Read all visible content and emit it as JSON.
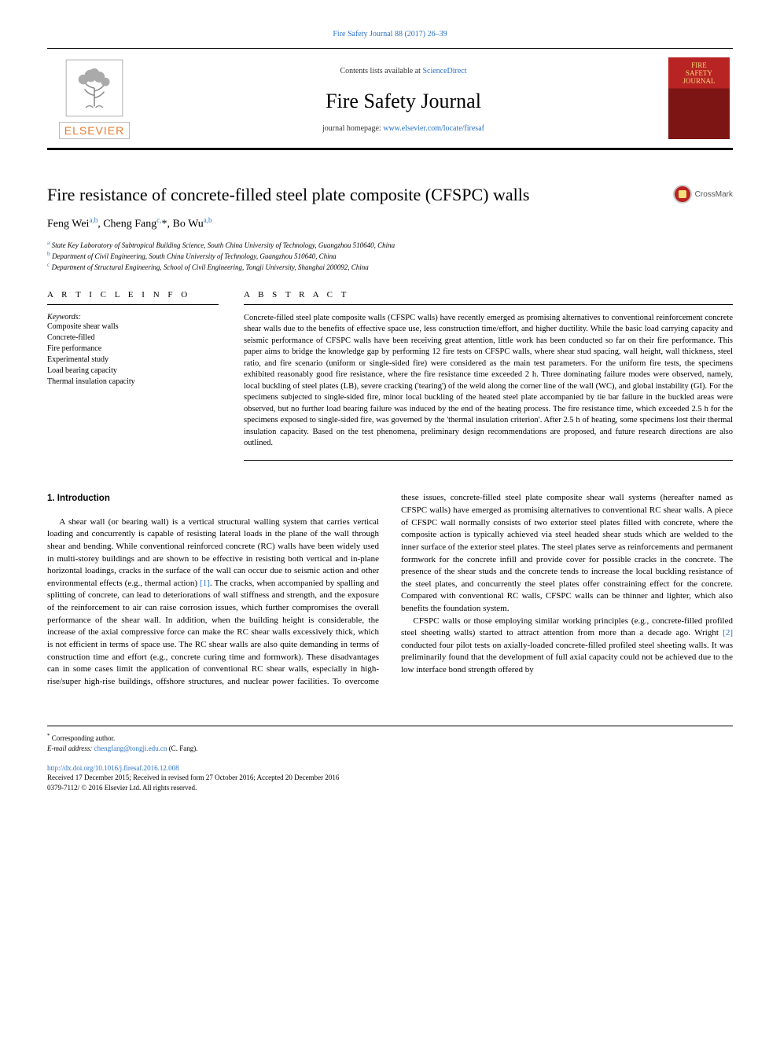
{
  "top_citation_link": "Fire Safety Journal 88 (2017) 26–39",
  "banner": {
    "contents_prefix": "Contents lists available at ",
    "contents_link_text": "ScienceDirect",
    "journal_name": "Fire Safety Journal",
    "homepage_prefix": "journal homepage: ",
    "homepage_link_text": "www.elsevier.com/locate/firesaf",
    "publisher_word": "ELSEVIER",
    "cover_line1": "FIRE",
    "cover_line2": "SAFETY",
    "cover_line3": "JOURNAL"
  },
  "article": {
    "title": "Fire resistance of concrete-filled steel plate composite (CFSPC) walls",
    "crossmark_label": "CrossMark",
    "authors_html": "Feng Wei<sup>a,b</sup>, Cheng Fang<sup>c,</sup>*, Bo Wu<sup>a,b</sup>",
    "affiliations": [
      {
        "sup": "a",
        "text": "State Key Laboratory of Subtropical Building Science, South China University of Technology, Guangzhou 510640, China"
      },
      {
        "sup": "b",
        "text": "Department of Civil Engineering, South China University of Technology, Guangzhou 510640, China"
      },
      {
        "sup": "c",
        "text": "Department of Structural Engineering, School of Civil Engineering, Tongji University, Shanghai 200092, China"
      }
    ]
  },
  "info": {
    "heading": "A R T I C L E   I N F O",
    "keywords_label": "Keywords:",
    "keywords": [
      "Composite shear walls",
      "Concrete-filled",
      "Fire performance",
      "Experimental study",
      "Load bearing capacity",
      "Thermal insulation capacity"
    ]
  },
  "abstract": {
    "heading": "A B S T R A C T",
    "text": "Concrete-filled steel plate composite walls (CFSPC walls) have recently emerged as promising alternatives to conventional reinforcement concrete shear walls due to the benefits of effective space use, less construction time/effort, and higher ductility. While the basic load carrying capacity and seismic performance of CFSPC walls have been receiving great attention, little work has been conducted so far on their fire performance. This paper aims to bridge the knowledge gap by performing 12 fire tests on CFSPC walls, where shear stud spacing, wall height, wall thickness, steel ratio, and fire scenario (uniform or single-sided fire) were considered as the main test parameters. For the uniform fire tests, the specimens exhibited reasonably good fire resistance, where the fire resistance time exceeded 2 h. Three dominating failure modes were observed, namely, local buckling of steel plates (LB), severe cracking ('tearing') of the weld along the corner line of the wall (WC), and global instability (GI). For the specimens subjected to single-sided fire, minor local buckling of the heated steel plate accompanied by tie bar failure in the buckled areas were observed, but no further load bearing failure was induced by the end of the heating process. The fire resistance time, which exceeded 2.5 h for the specimens exposed to single-sided fire, was governed by the 'thermal insulation criterion'. After 2.5 h of heating, some specimens lost their thermal insulation capacity. Based on the test phenomena, preliminary design recommendations are proposed, and future research directions are also outlined."
  },
  "body": {
    "section1_heading": "1. Introduction",
    "p1_a": "A shear wall (or bearing wall) is a vertical structural walling system that carries vertical loading and concurrently is capable of resisting lateral loads in the plane of the wall through shear and bending. While conventional reinforced concrete (RC) walls have been widely used in multi-storey buildings and are shown to be effective in resisting both vertical and in-plane horizontal loadings, cracks in the surface of the wall can occur due to seismic action and other environmental effects (e.g., thermal action) ",
    "cite1": "[1]",
    "p1_b": ". The cracks, when accompanied by spalling and splitting of concrete, can lead to deteriorations of wall stiffness and strength, and the exposure of the reinforcement to air can raise corrosion issues, which further compromises the overall performance of the shear wall. In addition, when the building height is considerable, the increase of the axial compressive force can make the RC shear walls excessively thick, which is not efficient in terms of space use. The RC shear walls are also quite demanding in terms of construction time and effort (e.g., concrete curing time and formwork). These disadvantages can in some cases limit the application of conventional RC shear walls, especially in high-rise/super high-rise buildings, offshore structures, and nuclear power facilities. To overcome these issues, concrete-filled steel plate composite shear wall systems (hereafter named as CFSPC walls) have emerged as promising alternatives to conventional RC shear walls. A piece of CFSPC wall normally consists of two exterior steel plates filled with concrete, where the composite action is typically achieved via steel headed shear studs which are welded to the inner surface of the exterior steel plates. The steel plates serve as reinforcements and permanent formwork for the concrete infill and provide cover for possible cracks in the concrete. The presence of the shear studs and the concrete tends to increase the local buckling resistance of the steel plates, and concurrently the steel plates offer constraining effect for the concrete. Compared with conventional RC walls, CFSPC walls can be thinner and lighter, which also benefits the foundation system.",
    "p2_a": "CFSPC walls or those employing similar working principles (e.g., concrete-filled profiled steel sheeting walls) started to attract attention from more than a decade ago. Wright ",
    "cite2": "[2]",
    "p2_b": " conducted four pilot tests on axially-loaded concrete-filled profiled steel sheeting walls. It was preliminarily found that the development of full axial capacity could not be achieved due to the low interface bond strength offered by"
  },
  "footer": {
    "corr_marker": "*",
    "corr_text": " Corresponding author.",
    "email_label": "E-mail address: ",
    "email": "chengfang@tongji.edu.cn",
    "email_suffix": " (C. Fang).",
    "doi": "http://dx.doi.org/10.1016/j.firesaf.2016.12.008",
    "dates": "Received 17 December 2015; Received in revised form 27 October 2016; Accepted 20 December 2016",
    "copyright": "0379-7112/ © 2016 Elsevier Ltd. All rights reserved."
  },
  "colors": {
    "link": "#2b72c4",
    "elsevier_orange": "#e77b2f",
    "cover_red_top": "#b82323",
    "cover_red_bottom": "#7d1515",
    "cover_gold": "#f5d97a",
    "crossmark_red": "#b92424"
  },
  "typography": {
    "body_fontsize_pt": 10.5,
    "title_fontsize_pt": 22,
    "journal_name_fontsize_pt": 26,
    "keywords_fontsize_pt": 10,
    "footer_fontsize_pt": 9
  }
}
